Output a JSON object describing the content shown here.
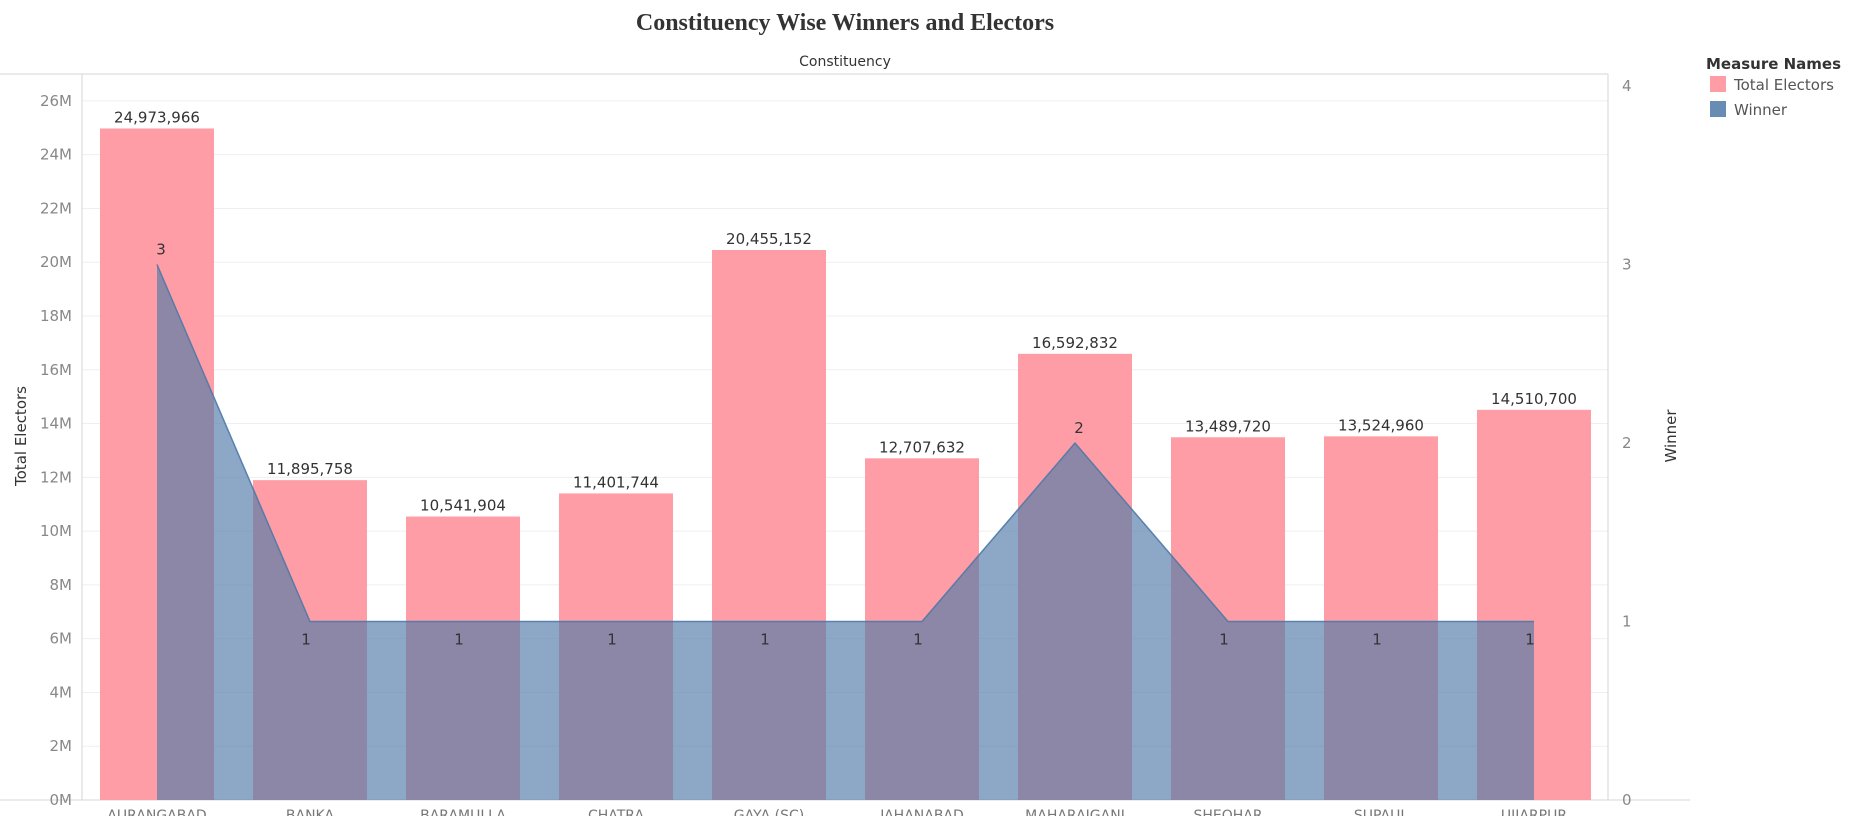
{
  "chart_data": {
    "type": "bar",
    "title": "Constituency Wise Winners and Electors",
    "column_header": "Constituency",
    "categories": [
      "AURANGABAD",
      "BANKA",
      "BARAMULLA",
      "CHATRA",
      "GAYA (SC)",
      "JAHANABAD",
      "MAHARAJGANJ",
      "SHEOHAR",
      "SUPAUL",
      "UJIARPUR"
    ],
    "series": [
      {
        "name": "Total Electors",
        "type": "bar",
        "axis": "left",
        "color": "#ff9da7",
        "values": [
          24973966,
          11895758,
          10541904,
          11401744,
          20455152,
          12707632,
          16592832,
          13489720,
          13524960,
          14510700
        ],
        "labels": [
          "24,973,966",
          "11,895,758",
          "10,541,904",
          "11,401,744",
          "20,455,152",
          "12,707,632",
          "16,592,832",
          "13,489,720",
          "13,524,960",
          "14,510,700"
        ]
      },
      {
        "name": "Winner",
        "type": "area",
        "axis": "right",
        "color": "#4e79a7",
        "values": [
          3,
          1,
          1,
          1,
          1,
          1,
          2,
          1,
          1,
          1
        ],
        "labels": [
          "3",
          "1",
          "1",
          "1",
          "1",
          "1",
          "2",
          "1",
          "1",
          "1"
        ]
      }
    ],
    "y_left": {
      "label": "Total Electors",
      "range": [
        0,
        27000000
      ],
      "ticks": [
        0,
        2000000,
        4000000,
        6000000,
        8000000,
        10000000,
        12000000,
        14000000,
        16000000,
        18000000,
        20000000,
        22000000,
        24000000,
        26000000
      ],
      "tick_labels": [
        "0M",
        "2M",
        "4M",
        "6M",
        "8M",
        "10M",
        "12M",
        "14M",
        "16M",
        "18M",
        "20M",
        "22M",
        "24M",
        "26M"
      ]
    },
    "y_right": {
      "label": "Winner",
      "range": [
        0,
        4
      ],
      "ticks": [
        0,
        1,
        2,
        3,
        4
      ],
      "tick_labels": [
        "0",
        "1",
        "2",
        "3",
        "4"
      ]
    },
    "grid": true,
    "legend": {
      "title": "Measure Names",
      "position": "top-right",
      "items": [
        {
          "label": "Total Electors",
          "color": "#ff9da7"
        },
        {
          "label": "Winner",
          "color": "#4e79a7"
        }
      ]
    }
  }
}
